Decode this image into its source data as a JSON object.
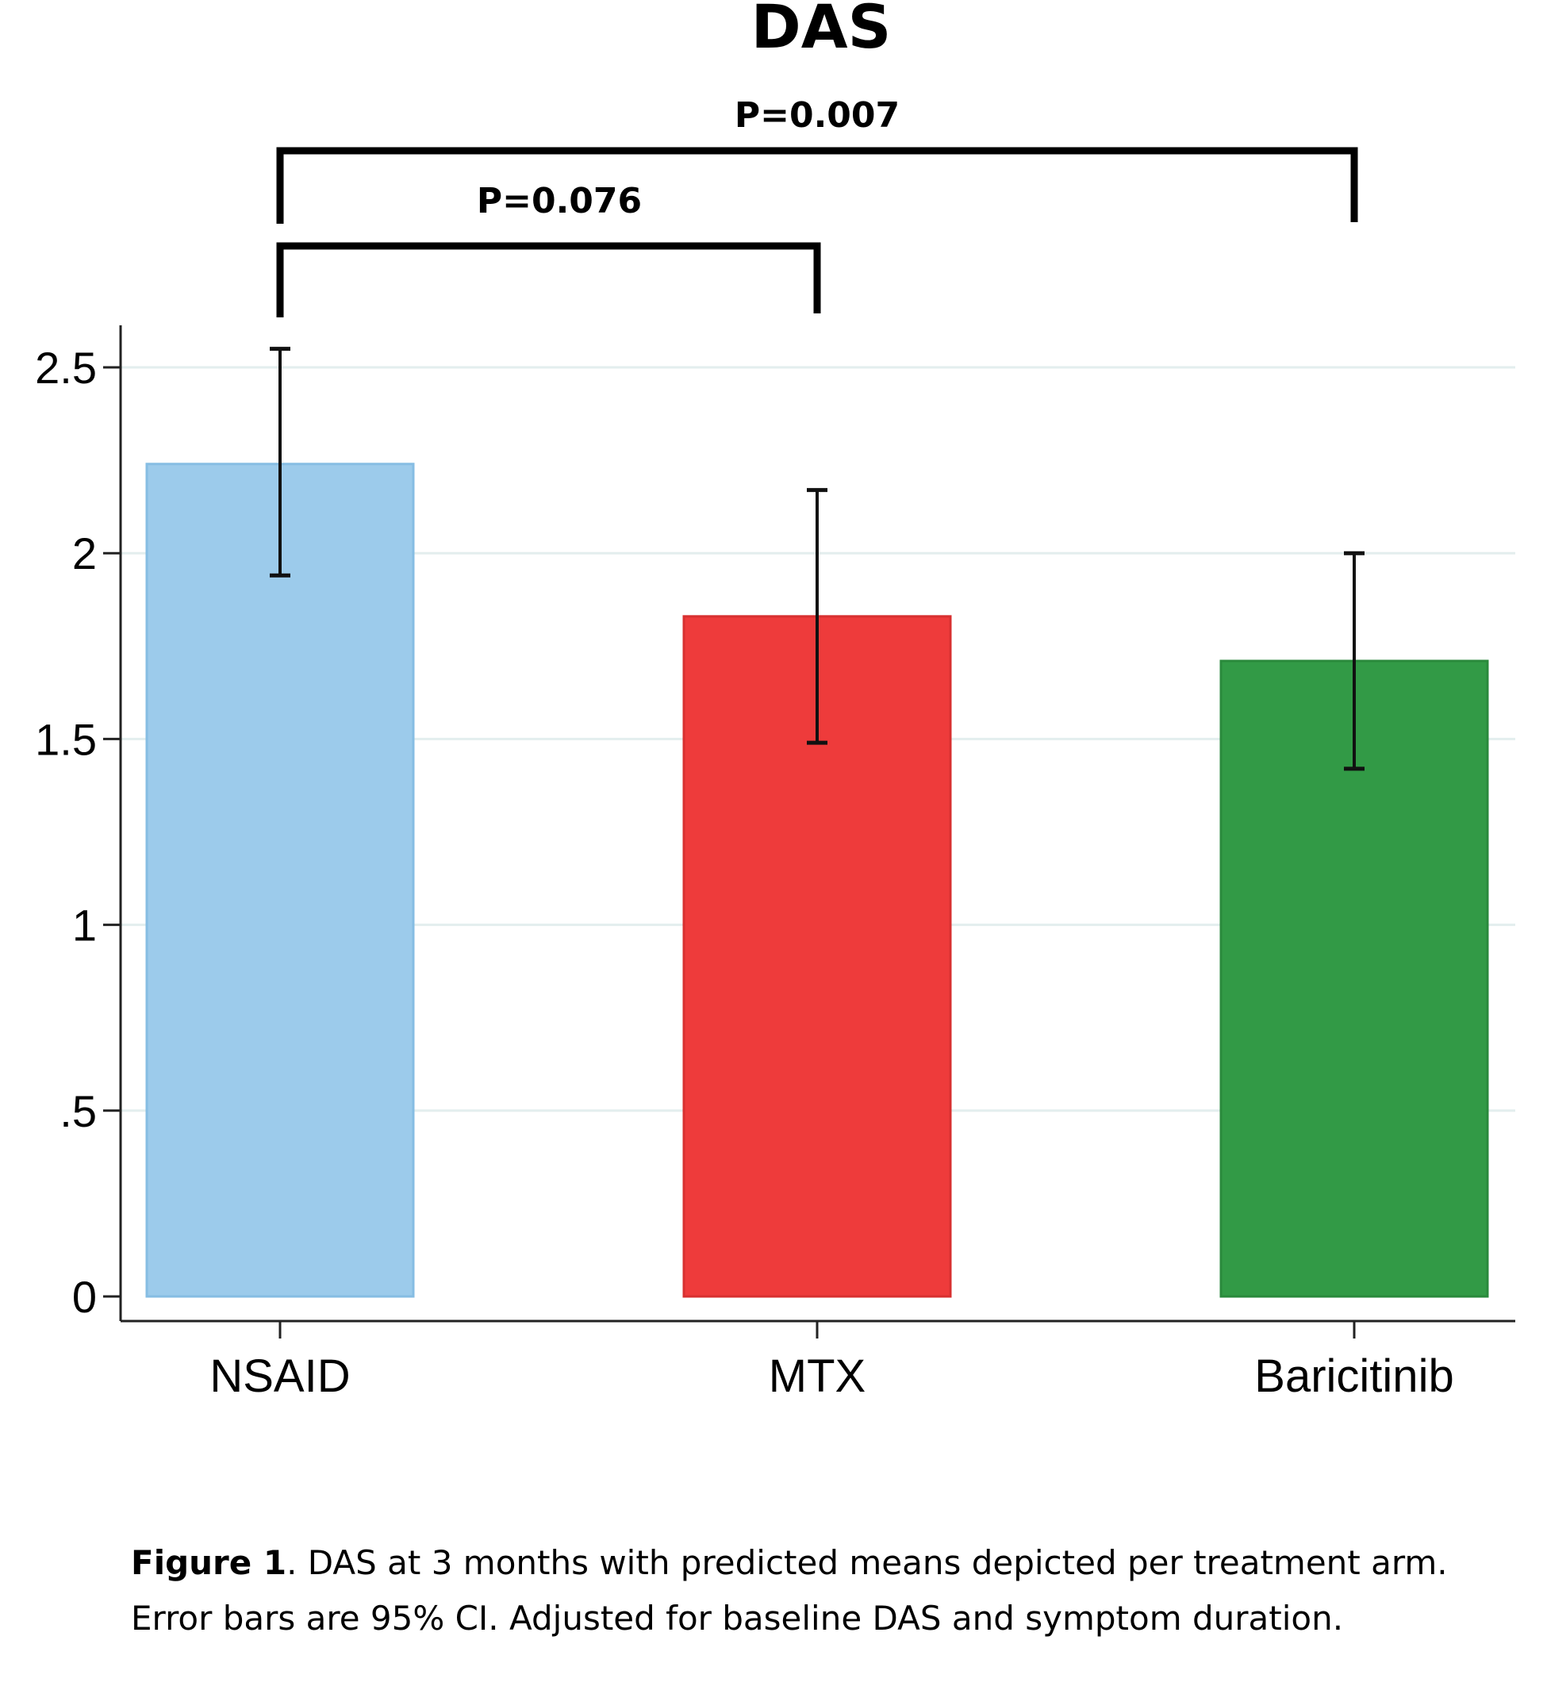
{
  "chart_data": {
    "type": "bar",
    "title": "DAS",
    "categories": [
      "NSAID",
      "MTX",
      "Baricitinib"
    ],
    "values": [
      2.24,
      1.83,
      1.71
    ],
    "error_bars": {
      "lower": [
        1.94,
        1.49,
        1.42
      ],
      "upper": [
        2.55,
        2.17,
        2.0
      ]
    },
    "bar_colors": [
      "#9ccbeb",
      "#ee3b3b",
      "#329a46"
    ],
    "bar_edge_colors": [
      "#86bde3",
      "#d83030",
      "#2a8a3c"
    ],
    "ylim": [
      0,
      2.6
    ],
    "yticks": [
      0,
      0.5,
      1,
      1.5,
      2,
      2.5
    ],
    "ytick_labels": [
      "0",
      ".5",
      "1",
      "1.5",
      "2",
      "2.5"
    ],
    "xlabel": "",
    "ylabel": "",
    "grid": true,
    "grid_color": "#e3eeee",
    "comparisons": [
      {
        "from": "NSAID",
        "to": "MTX",
        "label": "P=0.076"
      },
      {
        "from": "NSAID",
        "to": "Baricitinib",
        "label": "P=0.007"
      }
    ]
  },
  "caption": {
    "label": "Figure 1",
    "text": ". DAS at 3 months with predicted means depicted per treatment arm.",
    "line2": "Error bars are 95% CI.  Adjusted for baseline DAS and symptom duration."
  }
}
